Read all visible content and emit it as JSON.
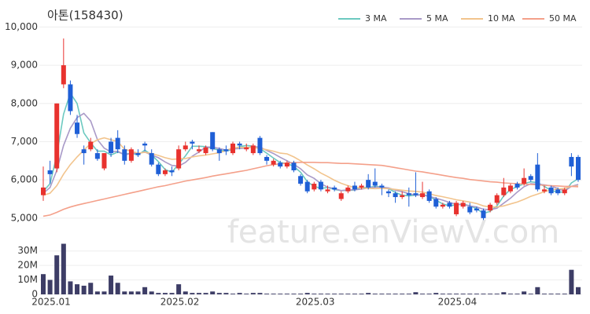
{
  "chart_data": [
    {
      "type": "candlestick",
      "title": "아톤(158430)",
      "watermark": "feature.enViewV.com",
      "up_color": "#e8322e",
      "down_color": "#1f5fd6",
      "grid": true,
      "legend": "top-right",
      "ylim": [
        4750,
        10050
      ],
      "yticks": [
        {
          "value": 5000,
          "label": "5,000"
        },
        {
          "value": 6000,
          "label": "6,000"
        },
        {
          "value": 7000,
          "label": "7,000"
        },
        {
          "value": 8000,
          "label": "8,000"
        },
        {
          "value": 9000,
          "label": "9,000"
        },
        {
          "value": 10000,
          "label": "10,000"
        }
      ],
      "open": [
        5600,
        6250,
        6300,
        8500,
        8500,
        7500,
        6800,
        6800,
        6700,
        6300,
        7000,
        7100,
        6800,
        6500,
        6700,
        6950,
        6700,
        6400,
        6150,
        6250,
        6300,
        6800,
        7000,
        6750,
        6700,
        7250,
        6800,
        6800,
        6700,
        6950,
        6800,
        6700,
        7100,
        6600,
        6400,
        6450,
        6350,
        6450,
        6100,
        5950,
        5750,
        5950,
        5700,
        5800,
        5500,
        5700,
        5850,
        5800,
        6000,
        5950,
        5850,
        5700,
        5650,
        5550,
        5650,
        5650,
        5550,
        5700,
        5500,
        5300,
        5400,
        5100,
        5300,
        5300,
        5250,
        5200,
        5200,
        5400,
        5600,
        5700,
        5900,
        5900,
        6100,
        6400,
        5700,
        5800,
        5750,
        5650,
        6600,
        6600
      ],
      "high": [
        6350,
        6500,
        8000,
        9700,
        8600,
        7700,
        6900,
        7100,
        6800,
        6700,
        7100,
        7300,
        6900,
        6850,
        6800,
        7000,
        6800,
        6450,
        6300,
        6350,
        6900,
        7000,
        7050,
        6900,
        6900,
        7250,
        6850,
        6900,
        7000,
        7000,
        6950,
        6950,
        7150,
        6650,
        6550,
        6500,
        6500,
        6500,
        6150,
        6000,
        5950,
        6000,
        5850,
        5850,
        5700,
        5850,
        5950,
        5900,
        6150,
        6300,
        5900,
        5750,
        5700,
        5700,
        5800,
        6200,
        5950,
        5750,
        5550,
        5400,
        5450,
        5450,
        5450,
        5400,
        5300,
        5250,
        5400,
        5650,
        6050,
        5900,
        5950,
        6300,
        6150,
        6700,
        5850,
        5850,
        5800,
        5800,
        6700,
        6650
      ],
      "low": [
        5450,
        5900,
        6200,
        8400,
        7700,
        7100,
        6400,
        6750,
        6500,
        6250,
        6600,
        6700,
        6400,
        6450,
        6600,
        6750,
        6350,
        6100,
        6100,
        6100,
        6250,
        6750,
        6800,
        6700,
        6650,
        6750,
        6500,
        6650,
        6650,
        6800,
        6750,
        6650,
        6650,
        6400,
        6350,
        6300,
        6300,
        6200,
        5850,
        5650,
        5700,
        5700,
        5650,
        5700,
        5450,
        5650,
        5700,
        5750,
        5750,
        5800,
        5600,
        5550,
        5400,
        5500,
        5300,
        5550,
        5500,
        5400,
        5250,
        5250,
        5250,
        5050,
        5250,
        5100,
        5150,
        4950,
        5150,
        5350,
        5550,
        5650,
        5750,
        5850,
        5950,
        5700,
        5650,
        5600,
        5600,
        5600,
        6100,
        5950
      ],
      "close": [
        5800,
        6150,
        8000,
        9000,
        7800,
        7200,
        6700,
        7000,
        6550,
        6700,
        6700,
        6800,
        6500,
        6800,
        6650,
        6900,
        6400,
        6150,
        6250,
        6200,
        6800,
        6900,
        6950,
        6800,
        6850,
        6800,
        6700,
        6750,
        6950,
        6900,
        6850,
        6900,
        6700,
        6500,
        6500,
        6350,
        6450,
        6250,
        5900,
        5700,
        5900,
        5750,
        5750,
        5750,
        5650,
        5800,
        5750,
        5850,
        5800,
        5850,
        5800,
        5650,
        5550,
        5600,
        5600,
        5600,
        5650,
        5450,
        5300,
        5350,
        5300,
        5400,
        5400,
        5150,
        5200,
        5000,
        5350,
        5600,
        5800,
        5850,
        5800,
        6050,
        6000,
        5750,
        5750,
        5650,
        5650,
        5750,
        6350,
        6000
      ],
      "series": [
        {
          "name": "3 MA",
          "color": "#6cc9c0",
          "values": [
            5700,
            5900,
            6650,
            7720,
            8270,
            8000,
            7230,
            6970,
            6750,
            6750,
            6650,
            6730,
            6670,
            6700,
            6650,
            6780,
            6650,
            6480,
            6270,
            6200,
            6420,
            6630,
            6880,
            6880,
            6870,
            6820,
            6780,
            6750,
            6800,
            6870,
            6900,
            6880,
            6820,
            6700,
            6570,
            6450,
            6430,
            6350,
            6200,
            5950,
            5830,
            5780,
            5800,
            5750,
            5720,
            5730,
            5730,
            5800,
            5800,
            5830,
            5820,
            5770,
            5670,
            5600,
            5580,
            5600,
            5620,
            5570,
            5470,
            5370,
            5320,
            5350,
            5370,
            5320,
            5250,
            5120,
            5180,
            5320,
            5580,
            5750,
            5820,
            5900,
            5950,
            5930,
            5830,
            5720,
            5680,
            5680,
            5920,
            6030
          ]
        },
        {
          "name": "5 MA",
          "color": "#a99ac8",
          "values": [
            5650,
            5800,
            6250,
            6900,
            7350,
            7630,
            7740,
            7540,
            7050,
            6830,
            6730,
            6750,
            6650,
            6700,
            6690,
            6730,
            6650,
            6580,
            6470,
            6380,
            6360,
            6460,
            6620,
            6730,
            6860,
            6860,
            6820,
            6780,
            6810,
            6820,
            6830,
            6870,
            6860,
            6770,
            6690,
            6590,
            6500,
            6410,
            6290,
            6130,
            6040,
            5900,
            5810,
            5770,
            5720,
            5740,
            5740,
            5760,
            5790,
            5810,
            5810,
            5790,
            5730,
            5690,
            5640,
            5600,
            5600,
            5570,
            5520,
            5470,
            5410,
            5360,
            5350,
            5320,
            5290,
            5230,
            5220,
            5260,
            5390,
            5520,
            5680,
            5820,
            5900,
            5890,
            5870,
            5840,
            5770,
            5710,
            5830,
            5880
          ]
        },
        {
          "name": "10 MA",
          "color": "#f2c48d",
          "values": [
            5600,
            5650,
            5850,
            6150,
            6400,
            6600,
            6780,
            6950,
            7050,
            7100,
            7050,
            7000,
            6800,
            6750,
            6700,
            6720,
            6690,
            6640,
            6580,
            6540,
            6550,
            6560,
            6600,
            6630,
            6650,
            6680,
            6710,
            6770,
            6840,
            6850,
            6850,
            6850,
            6820,
            6790,
            6750,
            6700,
            6680,
            6600,
            6500,
            6390,
            6290,
            6180,
            6090,
            5990,
            5910,
            5850,
            5800,
            5790,
            5780,
            5770,
            5780,
            5770,
            5750,
            5730,
            5710,
            5700,
            5680,
            5640,
            5590,
            5560,
            5520,
            5480,
            5450,
            5420,
            5380,
            5320,
            5290,
            5290,
            5320,
            5370,
            5420,
            5490,
            5570,
            5630,
            5690,
            5740,
            5760,
            5780,
            5830,
            5840
          ]
        },
        {
          "name": "50 MA",
          "color": "#f4a08a",
          "values": [
            5050,
            5080,
            5150,
            5230,
            5290,
            5340,
            5380,
            5420,
            5460,
            5500,
            5540,
            5580,
            5620,
            5660,
            5700,
            5740,
            5780,
            5820,
            5850,
            5890,
            5930,
            5970,
            6000,
            6030,
            6060,
            6100,
            6130,
            6160,
            6190,
            6220,
            6250,
            6290,
            6330,
            6370,
            6400,
            6420,
            6440,
            6450,
            6460,
            6460,
            6460,
            6450,
            6450,
            6440,
            6430,
            6430,
            6420,
            6410,
            6400,
            6390,
            6380,
            6350,
            6320,
            6290,
            6260,
            6230,
            6210,
            6180,
            6150,
            6120,
            6090,
            6060,
            6040,
            6010,
            5990,
            5970,
            5950,
            5940,
            5920,
            5910,
            5900,
            5890,
            5880,
            5870,
            5860,
            5850,
            5840,
            5830,
            5830,
            5820
          ]
        }
      ]
    },
    {
      "type": "bar",
      "color": "#3d3d66",
      "categories": [
        "2025.01",
        null,
        null,
        null,
        null,
        null,
        null,
        null,
        null,
        null,
        null,
        null,
        null,
        null,
        null,
        null,
        null,
        null,
        null,
        "2025.02",
        null,
        null,
        null,
        null,
        null,
        null,
        null,
        null,
        null,
        null,
        null,
        null,
        null,
        null,
        null,
        null,
        null,
        null,
        null,
        "2025.03",
        null,
        null,
        null,
        null,
        null,
        null,
        null,
        null,
        null,
        null,
        null,
        null,
        null,
        null,
        null,
        null,
        null,
        null,
        null,
        null,
        "2025.04",
        null,
        null,
        null,
        null,
        null,
        null,
        null,
        null,
        null,
        null,
        null,
        null,
        null,
        null,
        null,
        null,
        null,
        null,
        null
      ],
      "ylim": [
        0,
        38000000
      ],
      "yticks": [
        0,
        {
          "value": 10000000,
          "label": "10M"
        },
        {
          "value": 20000000,
          "label": "20M"
        },
        {
          "value": 30000000,
          "label": "30M"
        }
      ],
      "values": [
        14000000,
        10000000,
        27000000,
        35000000,
        9000000,
        7000000,
        6000000,
        8000000,
        2000000,
        2000000,
        13000000,
        8000000,
        2000000,
        2000000,
        2000000,
        5000000,
        2000000,
        1000000,
        1000000,
        1000000,
        7000000,
        2000000,
        1000000,
        1000000,
        1000000,
        2000000,
        1000000,
        1000000,
        500000,
        1000000,
        500000,
        1000000,
        1000000,
        500000,
        500000,
        500000,
        500000,
        500000,
        500000,
        1000000,
        500000,
        500000,
        500000,
        500000,
        500000,
        500000,
        500000,
        500000,
        1000000,
        500000,
        500000,
        500000,
        500000,
        500000,
        500000,
        1500000,
        500000,
        500000,
        1000000,
        500000,
        500000,
        500000,
        500000,
        500000,
        500000,
        500000,
        500000,
        500000,
        1500000,
        500000,
        500000,
        2000000,
        500000,
        5000000,
        500000,
        500000,
        500000,
        500000,
        17000000,
        5000000
      ]
    }
  ]
}
